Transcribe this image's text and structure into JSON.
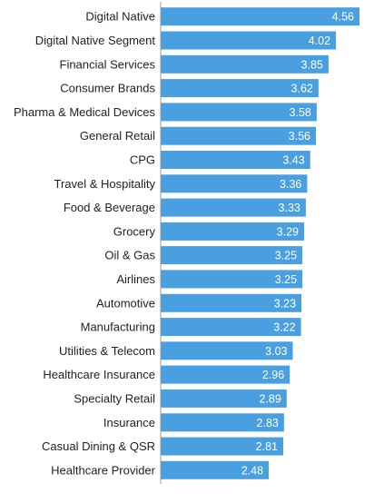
{
  "chart_data": {
    "type": "bar",
    "orientation": "horizontal",
    "categories": [
      "Digital Native",
      "Digital Native Segment",
      "Financial Services",
      "Consumer Brands",
      "Pharma & Medical Devices",
      "General Retail",
      "CPG",
      "Travel & Hospitality",
      "Food & Beverage",
      "Grocery",
      "Oil & Gas",
      "Airlines",
      "Automotive",
      "Manufacturing",
      "Utilities & Telecom",
      "Healthcare Insurance",
      "Specialty Retail",
      "Insurance",
      "Casual Dining & QSR",
      "Healthcare Provider"
    ],
    "values": [
      4.56,
      4.02,
      3.85,
      3.62,
      3.58,
      3.56,
      3.43,
      3.36,
      3.33,
      3.29,
      3.25,
      3.25,
      3.23,
      3.22,
      3.03,
      2.96,
      2.89,
      2.83,
      2.81,
      2.48
    ],
    "value_labels": [
      "4.56",
      "4.02",
      "3.85",
      "3.62",
      "3.58",
      "3.56",
      "3.43",
      "3.36",
      "3.33",
      "3.29",
      "3.25",
      "3.25",
      "3.23",
      "3.22",
      "3.03",
      "2.96",
      "2.89",
      "2.83",
      "2.81",
      "2.48"
    ],
    "title": "",
    "xlabel": "",
    "ylabel": "",
    "xlim": [
      0,
      4.56
    ],
    "grid": false,
    "legend": "none",
    "bar_color": "#4a9fe0",
    "axis_color": "#999999"
  }
}
